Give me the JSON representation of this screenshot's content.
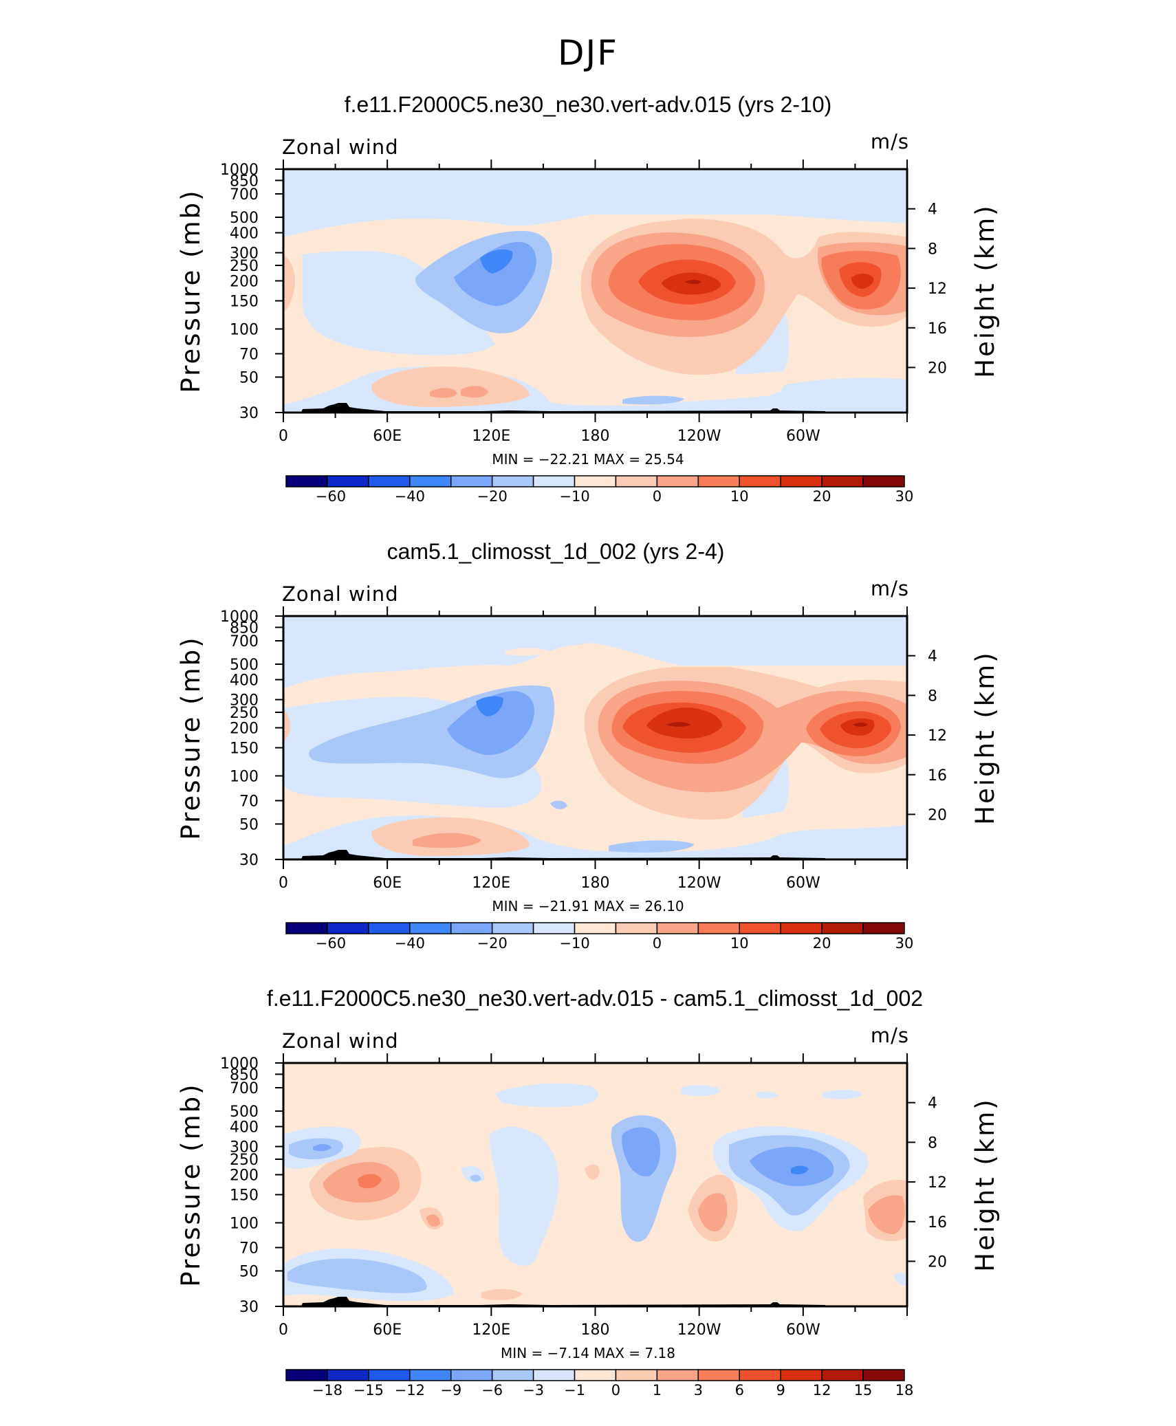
{
  "figure_title": "DJF",
  "colors": {
    "scale": [
      "#08007a",
      "#0c28c8",
      "#1f59ee",
      "#3f87f7",
      "#7aa7f8",
      "#aac7fa",
      "#d7e6fb",
      "#fde8d8",
      "#fbcbb4",
      "#f9a587",
      "#f67c5a",
      "#f1522e",
      "#d9310f",
      "#b21a08",
      "#850909"
    ],
    "axis": "#000000",
    "topo": "#000000"
  },
  "chart_data": [
    {
      "type": "contour",
      "title": "f.e11.F2000C5.ne30_ne30.vert-adv.015 (yrs 2-10)",
      "variable_label": "Zonal wind",
      "units_label": "m/s",
      "ylabel": "Pressure (mb)",
      "ylabel_right": "Height (km)",
      "x_tick_labels": [
        "0",
        "60E",
        "120E",
        "180",
        "120W",
        "60W"
      ],
      "x_range_deg": [
        0,
        360
      ],
      "y_tick_labels": [
        "30",
        "50",
        "70",
        "100",
        "150",
        "200",
        "250",
        "300",
        "400",
        "500",
        "700",
        "850",
        "1000"
      ],
      "y_range_mb": [
        1000,
        30
      ],
      "height_tick_labels": [
        "4",
        "8",
        "12",
        "16",
        "20"
      ],
      "stats_text": "MIN =  −22.21   MAX =   25.54",
      "min": -22.21,
      "max": 25.54,
      "levels_text": [
        "−60",
        "−40",
        "−20",
        "−10",
        "0",
        "10",
        "20",
        "30"
      ],
      "features": [
        {
          "label": "jet 150W",
          "lon": 195,
          "p": 150,
          "value": 25
        },
        {
          "label": "jet 30W",
          "lon": 330,
          "p": 150,
          "value": 22
        },
        {
          "label": "easterly 120E",
          "lon": 120,
          "p": 110,
          "value": -22
        },
        {
          "label": "westerly low 120E",
          "lon": 110,
          "p": 700,
          "value": 6
        },
        {
          "label": "easterly 150W low",
          "lon": 210,
          "p": 750,
          "value": -5
        },
        {
          "label": "westerly edge 0",
          "lon": 3,
          "p": 150,
          "value": 4
        }
      ]
    },
    {
      "type": "contour",
      "title": "cam5.1_climosst_1d_002 (yrs 2-4)",
      "variable_label": "Zonal wind",
      "units_label": "m/s",
      "ylabel": "Pressure (mb)",
      "ylabel_right": "Height (km)",
      "x_tick_labels": [
        "0",
        "60E",
        "120E",
        "180",
        "120W",
        "60W"
      ],
      "x_range_deg": [
        0,
        360
      ],
      "y_tick_labels": [
        "30",
        "50",
        "70",
        "100",
        "150",
        "200",
        "250",
        "300",
        "400",
        "500",
        "700",
        "850",
        "1000"
      ],
      "y_range_mb": [
        1000,
        30
      ],
      "height_tick_labels": [
        "4",
        "8",
        "12",
        "16",
        "20"
      ],
      "stats_text": "MIN =  −21.91   MAX =   26.10",
      "min": -21.91,
      "max": 26.1,
      "levels_text": [
        "−60",
        "−40",
        "−20",
        "−10",
        "0",
        "10",
        "20",
        "30"
      ],
      "features": [
        {
          "label": "jet 150W",
          "lon": 225,
          "p": 150,
          "value": 26
        },
        {
          "label": "jet 30W",
          "lon": 330,
          "p": 150,
          "value": 22
        },
        {
          "label": "easterly 120E",
          "lon": 117,
          "p": 110,
          "value": -22
        },
        {
          "label": "easterly band 60E",
          "lon": 70,
          "p": 180,
          "value": -10
        },
        {
          "label": "westerly low 90E",
          "lon": 90,
          "p": 700,
          "value": 6
        },
        {
          "label": "easterly 150W low",
          "lon": 210,
          "p": 750,
          "value": -5
        }
      ]
    },
    {
      "type": "contour",
      "title": "f.e11.F2000C5.ne30_ne30.vert-adv.015 - cam5.1_climosst_1d_002",
      "variable_label": "Zonal wind",
      "units_label": "m/s",
      "ylabel": "Pressure (mb)",
      "ylabel_right": "Height (km)",
      "x_tick_labels": [
        "0",
        "60E",
        "120E",
        "180",
        "120W",
        "60W"
      ],
      "x_range_deg": [
        0,
        360
      ],
      "y_tick_labels": [
        "30",
        "50",
        "70",
        "100",
        "150",
        "200",
        "250",
        "300",
        "400",
        "500",
        "700",
        "850",
        "1000"
      ],
      "y_range_mb": [
        1000,
        30
      ],
      "height_tick_labels": [
        "4",
        "8",
        "12",
        "16",
        "20"
      ],
      "stats_text": "MIN =    −7.14   MAX =     7.18",
      "min": -7.14,
      "max": 7.18,
      "levels_text": [
        "−18",
        "−15",
        "−12",
        "−9",
        "−6",
        "−3",
        "−1",
        "0",
        "1",
        "3",
        "6",
        "9",
        "12",
        "15",
        "18"
      ],
      "features": [
        {
          "label": "neg 20E",
          "lon": 20,
          "p": 110,
          "value": -5
        },
        {
          "label": "pos 50E",
          "lon": 50,
          "p": 150,
          "value": 7
        },
        {
          "label": "neg 170W",
          "lon": 205,
          "p": 120,
          "value": -6
        },
        {
          "label": "neg 60W",
          "lon": 300,
          "p": 150,
          "value": -7
        },
        {
          "label": "pos 140W",
          "lon": 250,
          "p": 250,
          "value": 5
        },
        {
          "label": "neg low 30E",
          "lon": 40,
          "p": 650,
          "value": -4
        },
        {
          "label": "pos 15W",
          "lon": 345,
          "p": 300,
          "value": 4
        },
        {
          "label": "pos 80E",
          "lon": 85,
          "p": 320,
          "value": 3
        }
      ]
    }
  ]
}
